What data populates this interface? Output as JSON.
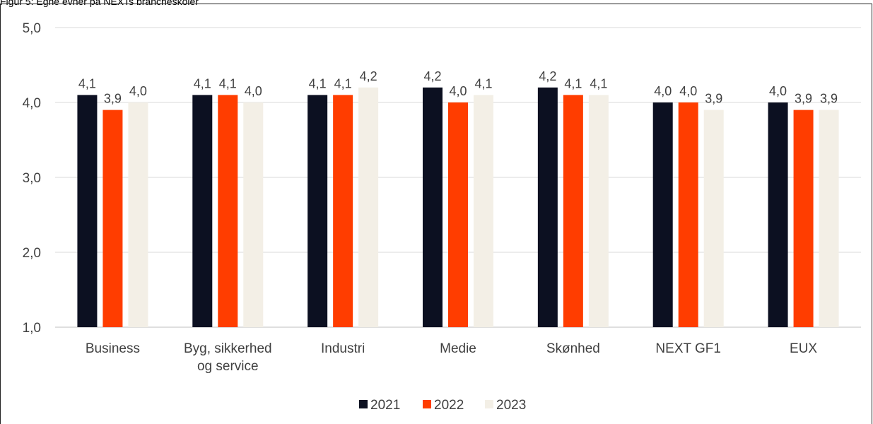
{
  "figure_title": "Figur 5: Egne evner på NEXTs brancheskoler",
  "chart_data": {
    "type": "bar",
    "categories": [
      "Business",
      "Byg, sikkerhed og service",
      "Industri",
      "Medie",
      "Skønhed",
      "NEXT GF1",
      "EUX"
    ],
    "category_lines": [
      [
        "Business"
      ],
      [
        "Byg, sikkerhed",
        "og service"
      ],
      [
        "Industri"
      ],
      [
        "Medie"
      ],
      [
        "Skønhed"
      ],
      [
        "NEXT GF1"
      ],
      [
        "EUX"
      ]
    ],
    "series": [
      {
        "name": "2021",
        "color": "#0c1021",
        "values": [
          4.1,
          4.1,
          4.1,
          4.2,
          4.2,
          4.0,
          4.0
        ],
        "labels": [
          "4,1",
          "4,1",
          "4,1",
          "4,2",
          "4,2",
          "4,0",
          "4,0"
        ]
      },
      {
        "name": "2022",
        "color": "#ff3d00",
        "values": [
          3.9,
          4.1,
          4.1,
          4.0,
          4.1,
          4.0,
          3.9
        ],
        "labels": [
          "3,9",
          "4,1",
          "4,1",
          "4,0",
          "4,1",
          "4,0",
          "3,9"
        ]
      },
      {
        "name": "2023",
        "color": "#f3efe6",
        "values": [
          4.0,
          4.0,
          4.2,
          4.1,
          4.1,
          3.9,
          3.9
        ],
        "labels": [
          "4,0",
          "4,0",
          "4,2",
          "4,1",
          "4,1",
          "3,9",
          "3,9"
        ]
      }
    ],
    "ylim": [
      1,
      5
    ],
    "yticks": [
      1,
      2,
      3,
      4,
      5
    ],
    "ytick_labels": [
      "1,0",
      "2,0",
      "3,0",
      "4,0",
      "5,0"
    ],
    "grid": true,
    "legend_position": "bottom"
  }
}
